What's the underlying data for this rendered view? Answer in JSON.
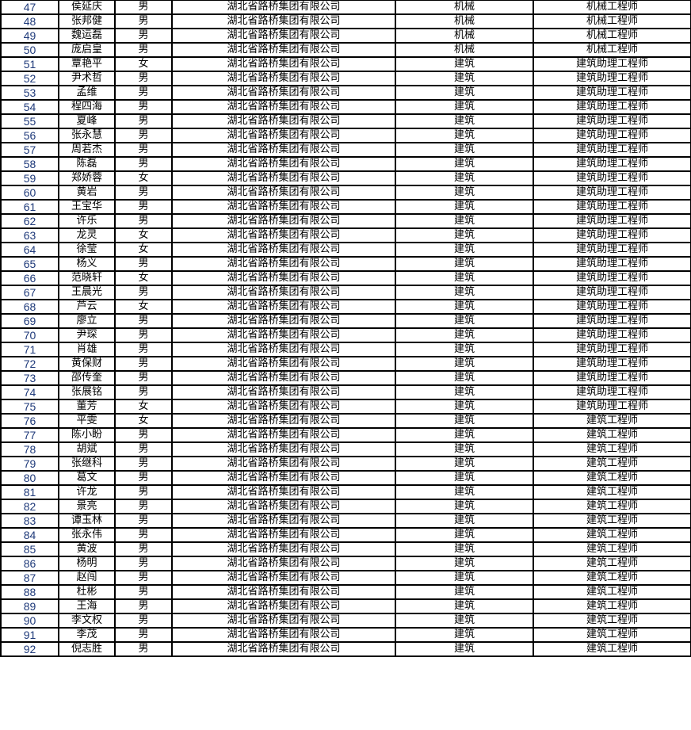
{
  "rows": [
    {
      "no": "47",
      "name": "侯延庆",
      "gender": "男",
      "company": "湖北省路桥集团有限公司",
      "major": "机械",
      "title": "机械工程师"
    },
    {
      "no": "48",
      "name": "张邦健",
      "gender": "男",
      "company": "湖北省路桥集团有限公司",
      "major": "机械",
      "title": "机械工程师"
    },
    {
      "no": "49",
      "name": "魏运磊",
      "gender": "男",
      "company": "湖北省路桥集团有限公司",
      "major": "机械",
      "title": "机械工程师"
    },
    {
      "no": "50",
      "name": "庞启皇",
      "gender": "男",
      "company": "湖北省路桥集团有限公司",
      "major": "机械",
      "title": "机械工程师"
    },
    {
      "no": "51",
      "name": "覃艳平",
      "gender": "女",
      "company": "湖北省路桥集团有限公司",
      "major": "建筑",
      "title": "建筑助理工程师"
    },
    {
      "no": "52",
      "name": "尹术哲",
      "gender": "男",
      "company": "湖北省路桥集团有限公司",
      "major": "建筑",
      "title": "建筑助理工程师"
    },
    {
      "no": "53",
      "name": "孟维",
      "gender": "男",
      "company": "湖北省路桥集团有限公司",
      "major": "建筑",
      "title": "建筑助理工程师"
    },
    {
      "no": "54",
      "name": "程四海",
      "gender": "男",
      "company": "湖北省路桥集团有限公司",
      "major": "建筑",
      "title": "建筑助理工程师"
    },
    {
      "no": "55",
      "name": "夏峰",
      "gender": "男",
      "company": "湖北省路桥集团有限公司",
      "major": "建筑",
      "title": "建筑助理工程师"
    },
    {
      "no": "56",
      "name": "张永慧",
      "gender": "男",
      "company": "湖北省路桥集团有限公司",
      "major": "建筑",
      "title": "建筑助理工程师"
    },
    {
      "no": "57",
      "name": "周若杰",
      "gender": "男",
      "company": "湖北省路桥集团有限公司",
      "major": "建筑",
      "title": "建筑助理工程师"
    },
    {
      "no": "58",
      "name": "陈磊",
      "gender": "男",
      "company": "湖北省路桥集团有限公司",
      "major": "建筑",
      "title": "建筑助理工程师"
    },
    {
      "no": "59",
      "name": "郑娇蓉",
      "gender": "女",
      "company": "湖北省路桥集团有限公司",
      "major": "建筑",
      "title": "建筑助理工程师"
    },
    {
      "no": "60",
      "name": "黄岩",
      "gender": "男",
      "company": "湖北省路桥集团有限公司",
      "major": "建筑",
      "title": "建筑助理工程师"
    },
    {
      "no": "61",
      "name": "王宝华",
      "gender": "男",
      "company": "湖北省路桥集团有限公司",
      "major": "建筑",
      "title": "建筑助理工程师"
    },
    {
      "no": "62",
      "name": "许乐",
      "gender": "男",
      "company": "湖北省路桥集团有限公司",
      "major": "建筑",
      "title": "建筑助理工程师"
    },
    {
      "no": "63",
      "name": "龙灵",
      "gender": "女",
      "company": "湖北省路桥集团有限公司",
      "major": "建筑",
      "title": "建筑助理工程师"
    },
    {
      "no": "64",
      "name": "徐莹",
      "gender": "女",
      "company": "湖北省路桥集团有限公司",
      "major": "建筑",
      "title": "建筑助理工程师"
    },
    {
      "no": "65",
      "name": "杨义",
      "gender": "男",
      "company": "湖北省路桥集团有限公司",
      "major": "建筑",
      "title": "建筑助理工程师"
    },
    {
      "no": "66",
      "name": "范晓轩",
      "gender": "女",
      "company": "湖北省路桥集团有限公司",
      "major": "建筑",
      "title": "建筑助理工程师"
    },
    {
      "no": "67",
      "name": "王晨光",
      "gender": "男",
      "company": "湖北省路桥集团有限公司",
      "major": "建筑",
      "title": "建筑助理工程师"
    },
    {
      "no": "68",
      "name": "芦云",
      "gender": "女",
      "company": "湖北省路桥集团有限公司",
      "major": "建筑",
      "title": "建筑助理工程师"
    },
    {
      "no": "69",
      "name": "廖立",
      "gender": "男",
      "company": "湖北省路桥集团有限公司",
      "major": "建筑",
      "title": "建筑助理工程师"
    },
    {
      "no": "70",
      "name": "尹琛",
      "gender": "男",
      "company": "湖北省路桥集团有限公司",
      "major": "建筑",
      "title": "建筑助理工程师"
    },
    {
      "no": "71",
      "name": "肖雄",
      "gender": "男",
      "company": "湖北省路桥集团有限公司",
      "major": "建筑",
      "title": "建筑助理工程师"
    },
    {
      "no": "72",
      "name": "黄保财",
      "gender": "男",
      "company": "湖北省路桥集团有限公司",
      "major": "建筑",
      "title": "建筑助理工程师"
    },
    {
      "no": "73",
      "name": "邵传奎",
      "gender": "男",
      "company": "湖北省路桥集团有限公司",
      "major": "建筑",
      "title": "建筑助理工程师"
    },
    {
      "no": "74",
      "name": "张展铭",
      "gender": "男",
      "company": "湖北省路桥集团有限公司",
      "major": "建筑",
      "title": "建筑助理工程师"
    },
    {
      "no": "75",
      "name": "董芳",
      "gender": "女",
      "company": "湖北省路桥集团有限公司",
      "major": "建筑",
      "title": "建筑助理工程师"
    },
    {
      "no": "76",
      "name": "平雯",
      "gender": "女",
      "company": "湖北省路桥集团有限公司",
      "major": "建筑",
      "title": "建筑工程师"
    },
    {
      "no": "77",
      "name": "陈小盼",
      "gender": "男",
      "company": "湖北省路桥集团有限公司",
      "major": "建筑",
      "title": "建筑工程师"
    },
    {
      "no": "78",
      "name": "胡斌",
      "gender": "男",
      "company": "湖北省路桥集团有限公司",
      "major": "建筑",
      "title": "建筑工程师"
    },
    {
      "no": "79",
      "name": "张继科",
      "gender": "男",
      "company": "湖北省路桥集团有限公司",
      "major": "建筑",
      "title": "建筑工程师"
    },
    {
      "no": "80",
      "name": "葛文",
      "gender": "男",
      "company": "湖北省路桥集团有限公司",
      "major": "建筑",
      "title": "建筑工程师"
    },
    {
      "no": "81",
      "name": "许龙",
      "gender": "男",
      "company": "湖北省路桥集团有限公司",
      "major": "建筑",
      "title": "建筑工程师"
    },
    {
      "no": "82",
      "name": "景亮",
      "gender": "男",
      "company": "湖北省路桥集团有限公司",
      "major": "建筑",
      "title": "建筑工程师"
    },
    {
      "no": "83",
      "name": "谭玉林",
      "gender": "男",
      "company": "湖北省路桥集团有限公司",
      "major": "建筑",
      "title": "建筑工程师"
    },
    {
      "no": "84",
      "name": "张永伟",
      "gender": "男",
      "company": "湖北省路桥集团有限公司",
      "major": "建筑",
      "title": "建筑工程师"
    },
    {
      "no": "85",
      "name": "黄波",
      "gender": "男",
      "company": "湖北省路桥集团有限公司",
      "major": "建筑",
      "title": "建筑工程师"
    },
    {
      "no": "86",
      "name": "杨明",
      "gender": "男",
      "company": "湖北省路桥集团有限公司",
      "major": "建筑",
      "title": "建筑工程师"
    },
    {
      "no": "87",
      "name": "赵闯",
      "gender": "男",
      "company": "湖北省路桥集团有限公司",
      "major": "建筑",
      "title": "建筑工程师"
    },
    {
      "no": "88",
      "name": "杜彬",
      "gender": "男",
      "company": "湖北省路桥集团有限公司",
      "major": "建筑",
      "title": "建筑工程师"
    },
    {
      "no": "89",
      "name": "王海",
      "gender": "男",
      "company": "湖北省路桥集团有限公司",
      "major": "建筑",
      "title": "建筑工程师"
    },
    {
      "no": "90",
      "name": "李文权",
      "gender": "男",
      "company": "湖北省路桥集团有限公司",
      "major": "建筑",
      "title": "建筑工程师"
    },
    {
      "no": "91",
      "name": "李茂",
      "gender": "男",
      "company": "湖北省路桥集团有限公司",
      "major": "建筑",
      "title": "建筑工程师"
    },
    {
      "no": "92",
      "name": "倪志胜",
      "gender": "男",
      "company": "湖北省路桥集团有限公司",
      "major": "建筑",
      "title": "建筑工程师"
    }
  ]
}
